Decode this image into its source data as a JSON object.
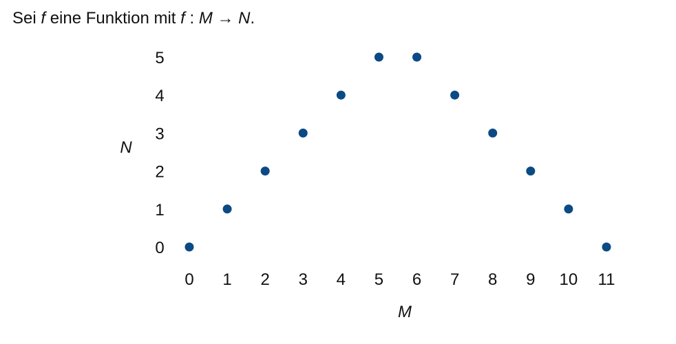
{
  "caption": {
    "prefix": "Sei ",
    "f1": "f",
    "middle": " eine Funktion mit ",
    "f2": "f",
    "colon": " : ",
    "domain": "M",
    "arrow": " → ",
    "codomain": "N",
    "period": "."
  },
  "chart_data": {
    "type": "scatter",
    "title": "",
    "xlabel": "M",
    "ylabel": "N",
    "x": [
      0,
      1,
      2,
      3,
      4,
      5,
      6,
      7,
      8,
      9,
      10,
      11
    ],
    "y": [
      0,
      1,
      2,
      3,
      4,
      5,
      5,
      4,
      3,
      2,
      1,
      0
    ],
    "xlim": [
      0,
      11
    ],
    "ylim": [
      0,
      5
    ],
    "xticks": [
      "0",
      "1",
      "2",
      "3",
      "4",
      "5",
      "6",
      "7",
      "8",
      "9",
      "10",
      "11"
    ],
    "yticks": [
      "0",
      "1",
      "2",
      "3",
      "4",
      "5"
    ],
    "grid": false,
    "point_color": "#0b4a84"
  }
}
